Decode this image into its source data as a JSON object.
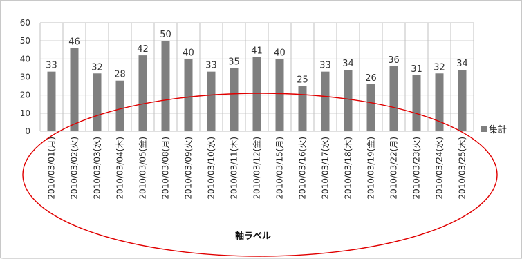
{
  "chart_data": {
    "type": "bar",
    "title": "",
    "xlabel": "軸ラベル",
    "ylabel": "",
    "ylim": [
      0,
      60
    ],
    "yticks": [
      0,
      10,
      20,
      30,
      40,
      50,
      60
    ],
    "grid": true,
    "legend": "right",
    "categories": [
      "2010/03/01(月)",
      "2010/03/02(火)",
      "2010/03/03(水)",
      "2010/03/04(木)",
      "2010/03/05(金)",
      "2010/03/08(月)",
      "2010/03/09(火)",
      "2010/03/10(水)",
      "2010/03/11(木)",
      "2010/03/12(金)",
      "2010/03/15(月)",
      "2010/03/16(火)",
      "2010/03/17(水)",
      "2010/03/18(木)",
      "2010/03/19(金)",
      "2010/03/22(月)",
      "2010/03/23(火)",
      "2010/03/24(水)",
      "2010/03/25(木)"
    ],
    "series": [
      {
        "name": "集計",
        "values": [
          33,
          46,
          32,
          28,
          42,
          50,
          40,
          33,
          35,
          41,
          40,
          25,
          33,
          34,
          26,
          36,
          31,
          32,
          34
        ]
      }
    ],
    "colors": {
      "bar": "#7f7f7f",
      "grid": "#c0c0c0",
      "highlight": "#e00000"
    },
    "annotation": "red-ellipse-around-axis-labels"
  }
}
